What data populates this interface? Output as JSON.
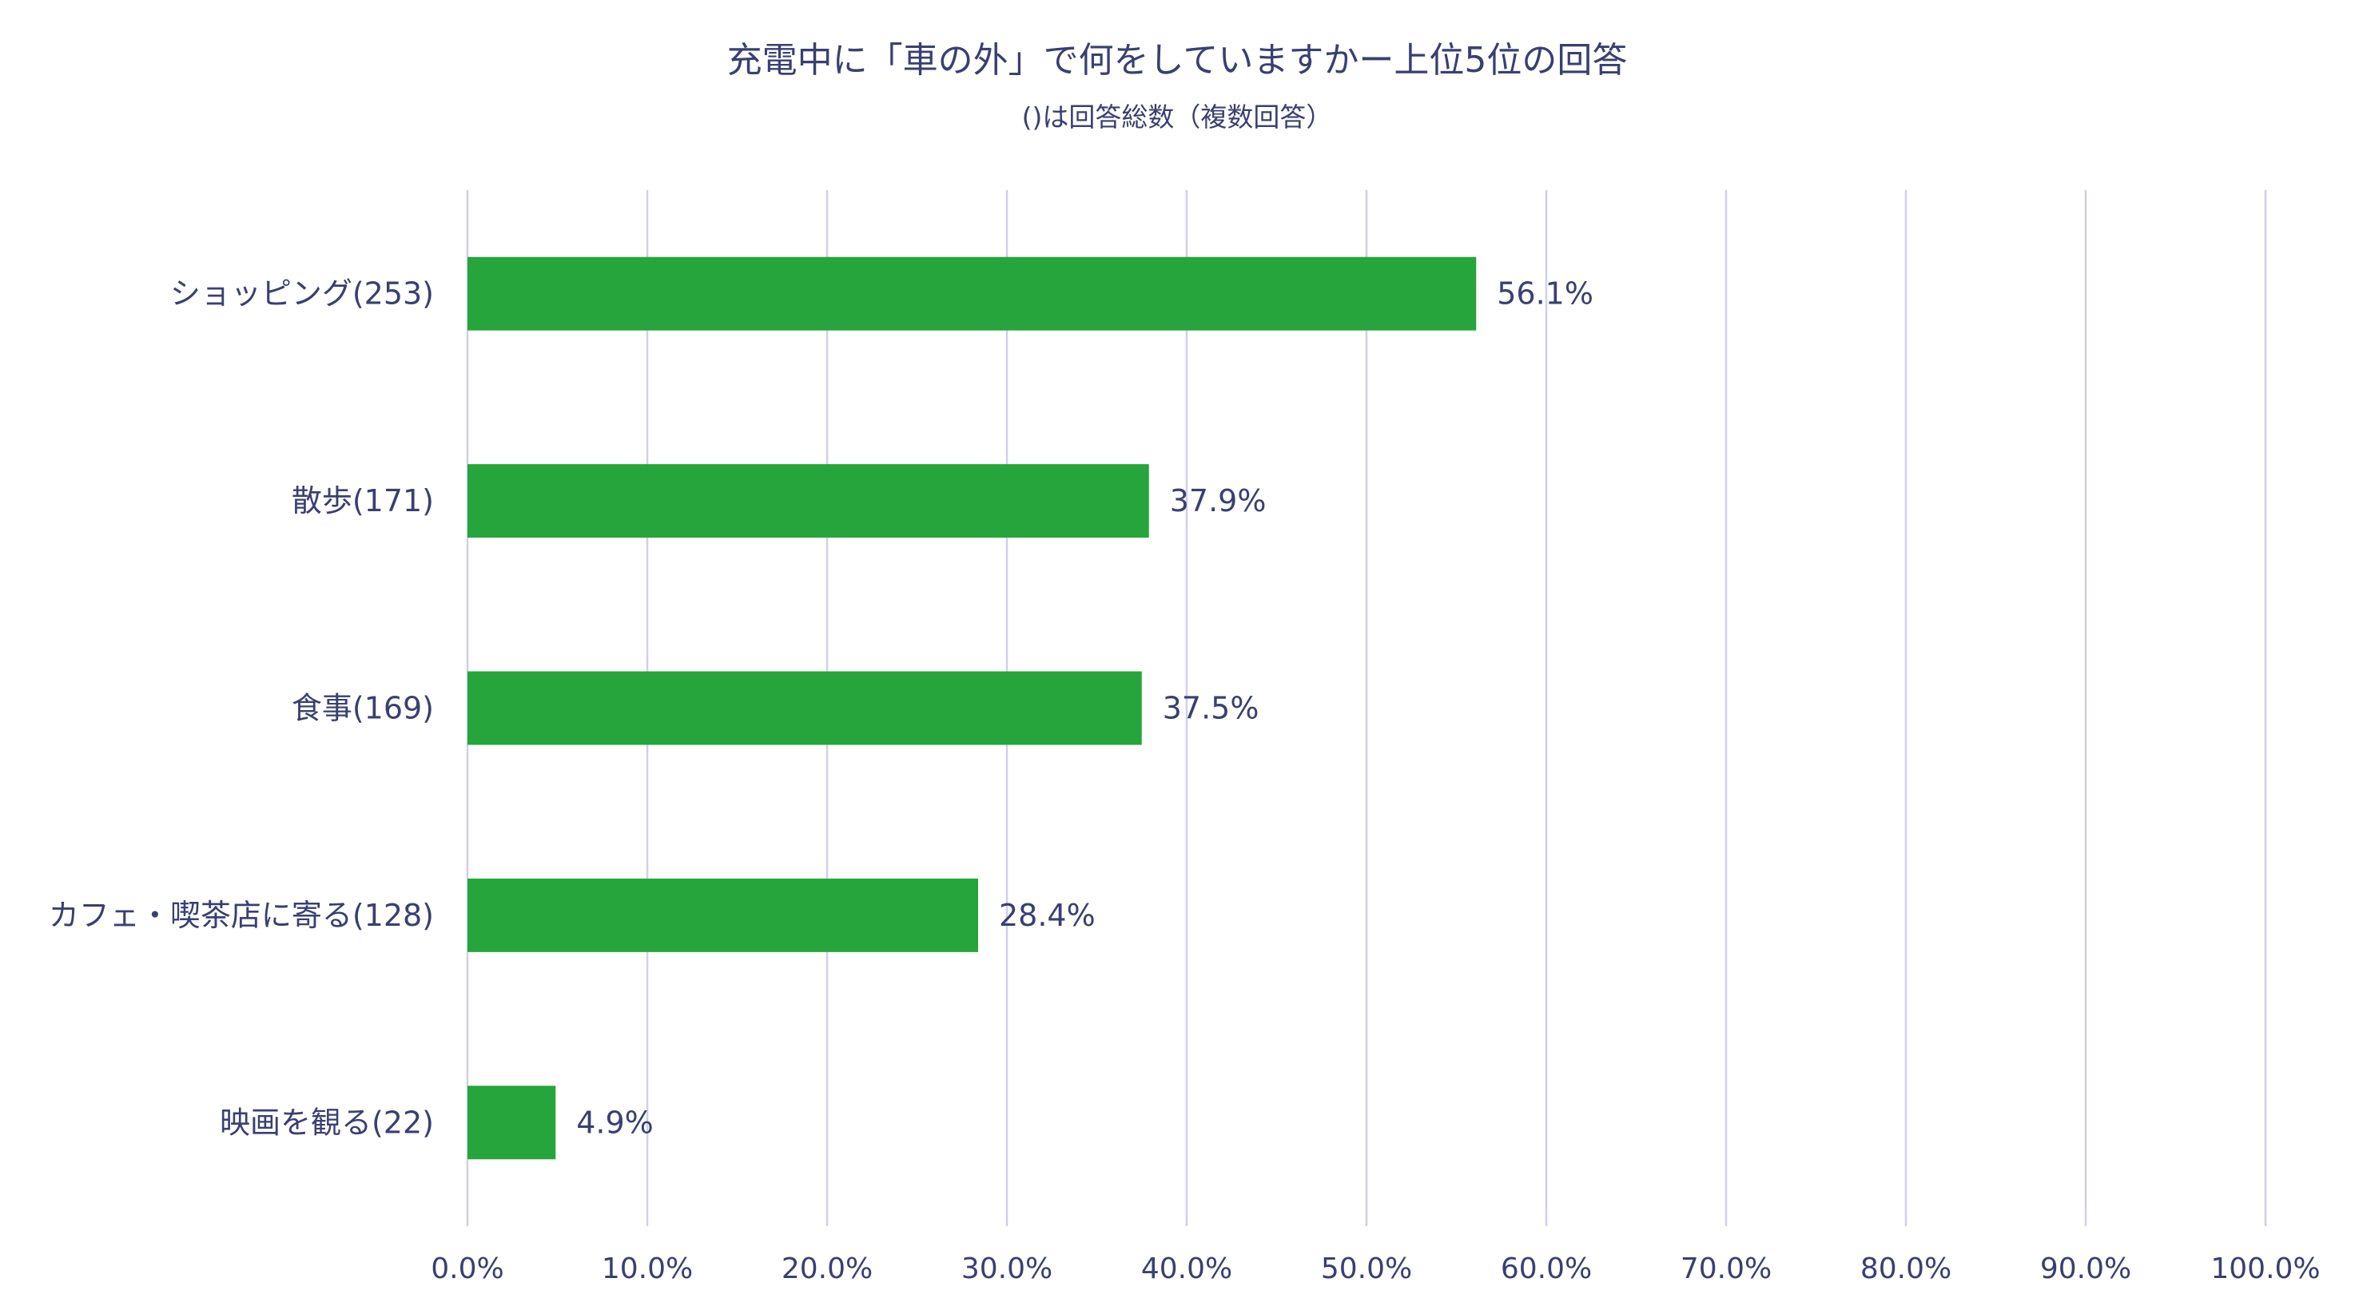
{
  "chart_data": {
    "type": "bar",
    "orientation": "horizontal",
    "title": "充電中に「車の外」で何をしていますかー上位5位の回答",
    "subtitle": "()は回答総数（複数回答）",
    "categories": [
      "ショッピング(253)",
      "散歩(171)",
      "食事(169)",
      "カフェ・喫茶店に寄る(128)",
      "映画を観る(22)"
    ],
    "values": [
      56.1,
      37.9,
      37.5,
      28.4,
      4.9
    ],
    "value_labels": [
      "56.1%",
      "37.9%",
      "37.5%",
      "28.4%",
      "4.9%"
    ],
    "xlim": [
      0,
      100
    ],
    "xticks": [
      0,
      10,
      20,
      30,
      40,
      50,
      60,
      70,
      80,
      90,
      100
    ],
    "xtick_labels": [
      "0.0%",
      "10.0%",
      "20.0%",
      "30.0%",
      "40.0%",
      "50.0%",
      "60.0%",
      "70.0%",
      "80.0%",
      "90.0%",
      "100.0%"
    ],
    "xlabel": "",
    "ylabel": "",
    "grid": true,
    "legend": "none",
    "colors": {
      "bar": "#25a53b",
      "text": "#3a3f72",
      "grid": "#d0d0ea"
    }
  }
}
